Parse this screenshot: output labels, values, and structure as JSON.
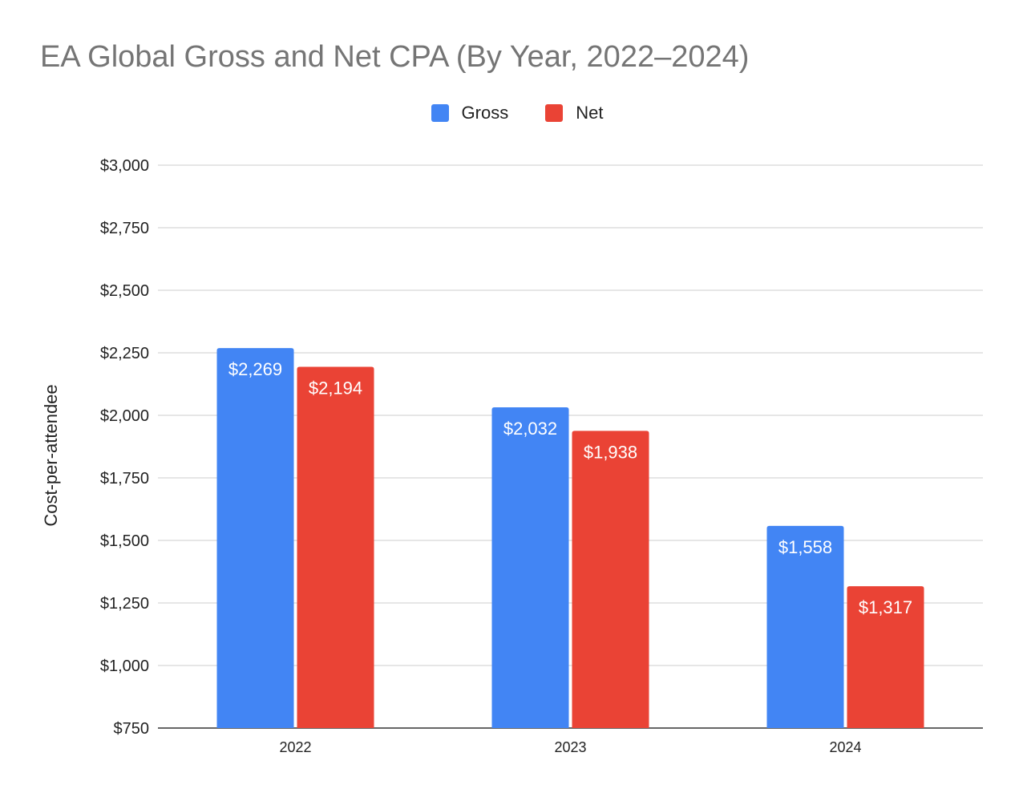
{
  "chart_data": {
    "type": "bar",
    "title": "EA Global Gross and Net CPA (By Year, 2022–2024)",
    "xlabel": "",
    "ylabel": "Cost-per-attendee",
    "categories": [
      "2022",
      "2023",
      "2024"
    ],
    "series": [
      {
        "name": "Gross",
        "color": "#4285f4",
        "values": [
          2269,
          2032,
          1558
        ],
        "labels": [
          "$2,269",
          "$2,032",
          "$1,558"
        ]
      },
      {
        "name": "Net",
        "color": "#ea4335",
        "values": [
          2194,
          1938,
          1317
        ],
        "labels": [
          "$2,194",
          "$1,938",
          "$1,317"
        ]
      }
    ],
    "ylim": [
      750,
      3000
    ],
    "yticks": [
      750,
      1000,
      1250,
      1500,
      1750,
      2000,
      2250,
      2500,
      2750,
      3000
    ],
    "ytick_labels": [
      "$750",
      "$1,000",
      "$1,250",
      "$1,500",
      "$1,750",
      "$2,000",
      "$2,250",
      "$2,500",
      "$2,750",
      "$3,000"
    ],
    "legend_position": "top-center",
    "grid": true
  }
}
